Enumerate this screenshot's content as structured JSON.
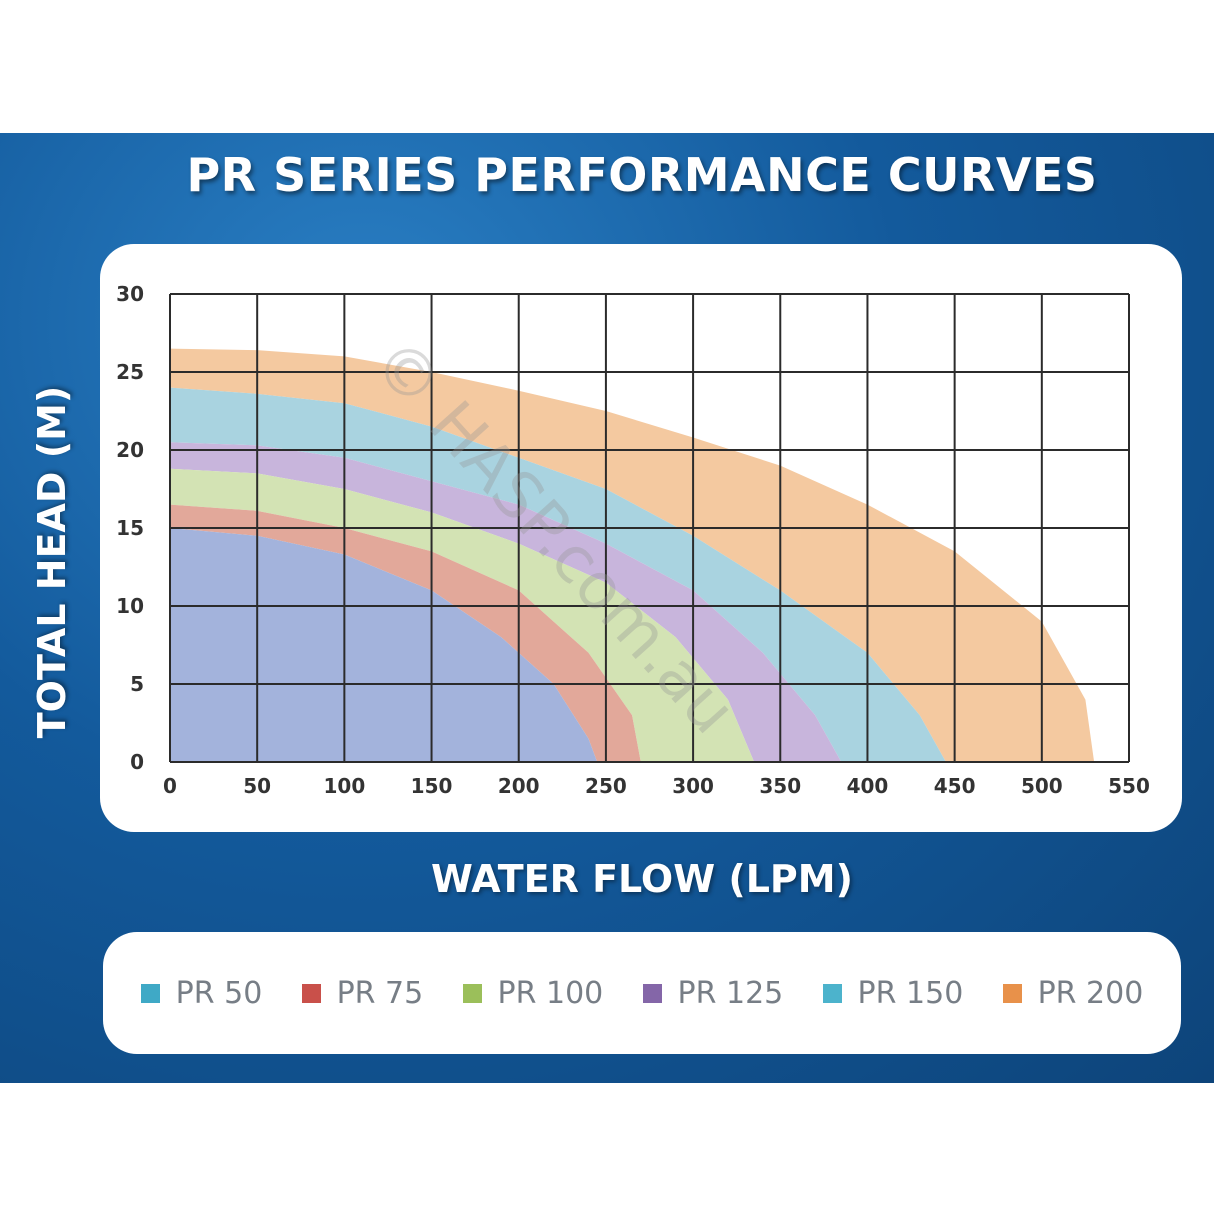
{
  "title": "PR SERIES PERFORMANCE CURVES",
  "watermark": "© HASP.com.au",
  "chart_data": {
    "type": "area",
    "title": "PR SERIES PERFORMANCE CURVES",
    "xlabel": "WATER FLOW (LPM)",
    "ylabel": "TOTAL HEAD (M)",
    "xlim": [
      0,
      550
    ],
    "ylim": [
      0,
      30
    ],
    "x_ticks": [
      0,
      50,
      100,
      150,
      200,
      250,
      300,
      350,
      400,
      450,
      500,
      550
    ],
    "y_ticks": [
      0,
      5,
      10,
      15,
      20,
      25,
      30
    ],
    "grid": true,
    "legend_position": "bottom",
    "series": [
      {
        "name": "PR 200",
        "color": "#f4c9a0",
        "upper": [
          [
            0,
            26.5
          ],
          [
            50,
            26.4
          ],
          [
            100,
            26
          ],
          [
            150,
            25
          ],
          [
            200,
            23.8
          ],
          [
            250,
            22.5
          ],
          [
            300,
            20.8
          ],
          [
            350,
            19
          ],
          [
            400,
            16.5
          ],
          [
            450,
            13.5
          ],
          [
            500,
            9
          ],
          [
            525,
            4
          ],
          [
            530,
            0
          ]
        ],
        "lower": [
          [
            0,
            24
          ],
          [
            50,
            23.6
          ],
          [
            100,
            23
          ],
          [
            150,
            21.5
          ],
          [
            200,
            19.5
          ],
          [
            250,
            17.5
          ],
          [
            300,
            14.5
          ],
          [
            350,
            11
          ],
          [
            400,
            7
          ],
          [
            430,
            3
          ],
          [
            445,
            0
          ]
        ]
      },
      {
        "name": "PR 150",
        "color": "#a9d3e0",
        "upper": [
          [
            0,
            24
          ],
          [
            50,
            23.6
          ],
          [
            100,
            23
          ],
          [
            150,
            21.5
          ],
          [
            200,
            19.5
          ],
          [
            250,
            17.5
          ],
          [
            300,
            14.5
          ],
          [
            350,
            11
          ],
          [
            400,
            7
          ],
          [
            430,
            3
          ],
          [
            445,
            0
          ]
        ],
        "lower": [
          [
            0,
            20.5
          ],
          [
            50,
            20.3
          ],
          [
            100,
            19.5
          ],
          [
            150,
            18
          ],
          [
            200,
            16.5
          ],
          [
            250,
            14
          ],
          [
            300,
            11
          ],
          [
            340,
            7
          ],
          [
            370,
            3
          ],
          [
            385,
            0
          ]
        ]
      },
      {
        "name": "PR 125",
        "color": "#c8b5dc",
        "upper": [
          [
            0,
            20.5
          ],
          [
            50,
            20.3
          ],
          [
            100,
            19.5
          ],
          [
            150,
            18
          ],
          [
            200,
            16.5
          ],
          [
            250,
            14
          ],
          [
            300,
            11
          ],
          [
            340,
            7
          ],
          [
            370,
            3
          ],
          [
            385,
            0
          ]
        ],
        "lower": [
          [
            0,
            18.8
          ],
          [
            50,
            18.5
          ],
          [
            100,
            17.5
          ],
          [
            150,
            16
          ],
          [
            200,
            14
          ],
          [
            250,
            11.5
          ],
          [
            290,
            8
          ],
          [
            320,
            4
          ],
          [
            335,
            0
          ]
        ]
      },
      {
        "name": "PR 100",
        "color": "#d3e3b4",
        "upper": [
          [
            0,
            18.8
          ],
          [
            50,
            18.5
          ],
          [
            100,
            17.5
          ],
          [
            150,
            16
          ],
          [
            200,
            14
          ],
          [
            250,
            11.5
          ],
          [
            290,
            8
          ],
          [
            320,
            4
          ],
          [
            335,
            0
          ]
        ],
        "lower": [
          [
            0,
            16.5
          ],
          [
            50,
            16.1
          ],
          [
            100,
            15
          ],
          [
            150,
            13.5
          ],
          [
            200,
            11
          ],
          [
            240,
            7
          ],
          [
            265,
            3
          ],
          [
            270,
            0
          ]
        ]
      },
      {
        "name": "PR 75",
        "color": "#e2a89a",
        "upper": [
          [
            0,
            16.5
          ],
          [
            50,
            16.1
          ],
          [
            100,
            15
          ],
          [
            150,
            13.5
          ],
          [
            200,
            11
          ],
          [
            240,
            7
          ],
          [
            265,
            3
          ],
          [
            270,
            0
          ]
        ],
        "lower": [
          [
            0,
            15
          ],
          [
            50,
            14.5
          ],
          [
            100,
            13.3
          ],
          [
            150,
            11
          ],
          [
            190,
            8
          ],
          [
            220,
            5
          ],
          [
            240,
            1.5
          ],
          [
            245,
            0
          ]
        ]
      },
      {
        "name": "PR 50",
        "color": "#a3b3dc",
        "upper": [
          [
            0,
            15
          ],
          [
            50,
            14.5
          ],
          [
            100,
            13.3
          ],
          [
            150,
            11
          ],
          [
            190,
            8
          ],
          [
            220,
            5
          ],
          [
            240,
            1.5
          ],
          [
            245,
            0
          ]
        ],
        "lower": [
          [
            0,
            0
          ],
          [
            245,
            0
          ]
        ]
      }
    ]
  },
  "legend": [
    {
      "label": "PR 50",
      "color": "#3fa9c6"
    },
    {
      "label": "PR 75",
      "color": "#c9504a"
    },
    {
      "label": "PR 100",
      "color": "#9bbf5a"
    },
    {
      "label": "PR 125",
      "color": "#8466a8"
    },
    {
      "label": "PR 150",
      "color": "#4cb3cc"
    },
    {
      "label": "PR 200",
      "color": "#e8914a"
    }
  ]
}
